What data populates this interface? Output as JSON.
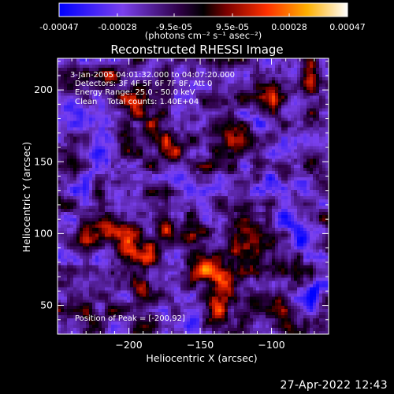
{
  "title": "Reconstructed RHESSI Image",
  "colorbar": {
    "ticks": [
      "-0.00047",
      "-0.00028",
      "-9.5e-05",
      "9.5e-05",
      "0.00028",
      "0.00047"
    ],
    "tick_values": [
      -0.00047,
      -0.00028,
      -9.5e-05,
      9.5e-05,
      0.00028,
      0.00047
    ],
    "range": [
      -0.00047,
      0.00047
    ],
    "unit_label": "(photons cm⁻² s⁻¹ asec⁻²)",
    "colors": [
      "#0000ff",
      "#7a40ee",
      "#2d0044",
      "#000000",
      "#7a0000",
      "#ff3000",
      "#ffb000",
      "#ffffff"
    ]
  },
  "info": {
    "line1": "3-Jan-2005 04:01:32.000 to 04:07:20.000",
    "line2": "Detectors: 3F 4F 5F 6F 7F 8F, Att 0",
    "line3": "Energy Range: 25.0 - 50.0 keV",
    "line4": "Clean    Total counts: 1.40E+04"
  },
  "peak_text": "Position of Peak = [-200,92]",
  "footer": "27-Apr-2022 12:43",
  "chart_data": {
    "type": "heatmap",
    "title": "Reconstructed RHESSI Image",
    "xlabel": "Heliocentric X (arcsec)",
    "ylabel": "Heliocentric Y (arcsec)",
    "xlim": [
      -250,
      -60
    ],
    "ylim": [
      30,
      222
    ],
    "xticks": [
      -200,
      -150,
      -100
    ],
    "yticks": [
      50,
      100,
      150,
      200
    ],
    "grid": false,
    "value_range": [
      -0.00047,
      0.00047
    ],
    "peak": [
      -200,
      92
    ],
    "bright_regions": [
      {
        "x": -212,
        "y": 206,
        "level": 0.45
      },
      {
        "x": -196,
        "y": 191,
        "level": 0.55
      },
      {
        "x": -183,
        "y": 176,
        "level": 0.5
      },
      {
        "x": -172,
        "y": 160,
        "level": 0.55
      },
      {
        "x": -140,
        "y": 168,
        "level": 0.5
      },
      {
        "x": -100,
        "y": 194,
        "level": 0.55
      },
      {
        "x": -72,
        "y": 211,
        "level": 0.6
      },
      {
        "x": -118,
        "y": 165,
        "level": 0.45
      },
      {
        "x": -229,
        "y": 100,
        "level": 0.55
      },
      {
        "x": -215,
        "y": 102,
        "level": 0.7
      },
      {
        "x": -200,
        "y": 92,
        "level": 1.0
      },
      {
        "x": -185,
        "y": 83,
        "level": 0.75
      },
      {
        "x": -190,
        "y": 62,
        "level": 0.6
      },
      {
        "x": -172,
        "y": 103,
        "level": 0.55
      },
      {
        "x": -157,
        "y": 97,
        "level": 0.6
      },
      {
        "x": -145,
        "y": 75,
        "level": 0.9
      },
      {
        "x": -133,
        "y": 67,
        "level": 0.85
      },
      {
        "x": -120,
        "y": 88,
        "level": 0.6
      },
      {
        "x": -137,
        "y": 46,
        "level": 0.55
      },
      {
        "x": -118,
        "y": 110,
        "level": 0.5
      },
      {
        "x": -225,
        "y": 37,
        "level": 0.45
      },
      {
        "x": -98,
        "y": 52,
        "level": 0.4
      },
      {
        "x": -82,
        "y": 35,
        "level": 0.35
      },
      {
        "x": -100,
        "y": 77,
        "level": 0.35
      }
    ],
    "dark_regions": [
      {
        "x": -90,
        "y": 110,
        "level": -0.65
      },
      {
        "x": -75,
        "y": 97,
        "level": -0.7
      },
      {
        "x": -100,
        "y": 135,
        "level": -0.55
      },
      {
        "x": -78,
        "y": 130,
        "level": -0.55
      },
      {
        "x": -236,
        "y": 130,
        "level": -0.45
      },
      {
        "x": -222,
        "y": 150,
        "level": -0.45
      },
      {
        "x": -238,
        "y": 80,
        "level": -0.4
      },
      {
        "x": -155,
        "y": 40,
        "level": -0.4
      },
      {
        "x": -70,
        "y": 60,
        "level": -0.55
      },
      {
        "x": -160,
        "y": 130,
        "level": -0.3
      },
      {
        "x": -110,
        "y": 180,
        "level": -0.35
      },
      {
        "x": -240,
        "y": 188,
        "level": -0.35
      }
    ]
  }
}
